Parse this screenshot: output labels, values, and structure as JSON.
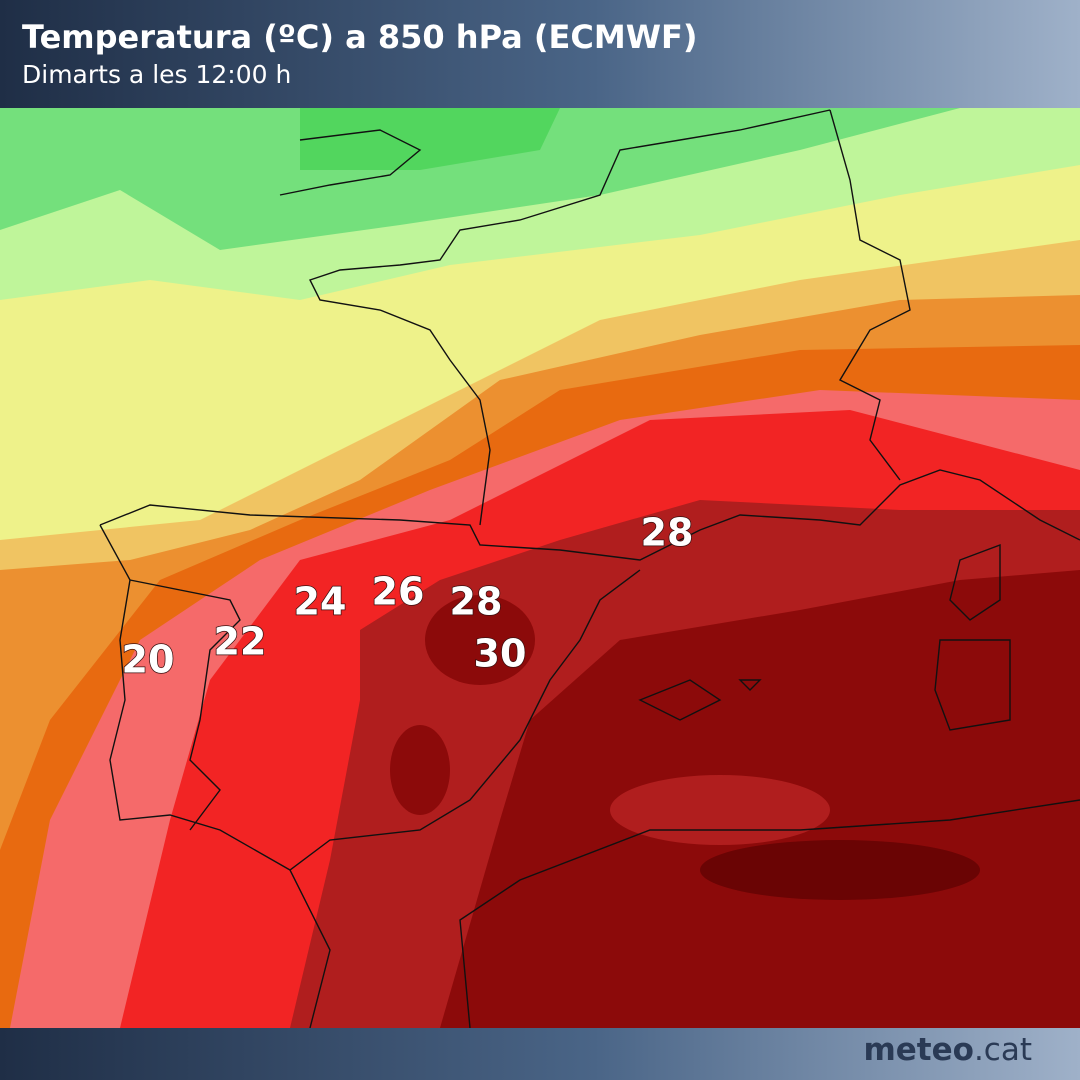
{
  "header": {
    "title": "Temperatura (ºC) a 850 hPa (ECMWF)",
    "subtitle": "Dimarts a les 12:00 h"
  },
  "map": {
    "labels": [
      20,
      22,
      24,
      26,
      28,
      30,
      28
    ]
  },
  "footer": {
    "brand": "meteo",
    "suffix": ".cat"
  }
}
